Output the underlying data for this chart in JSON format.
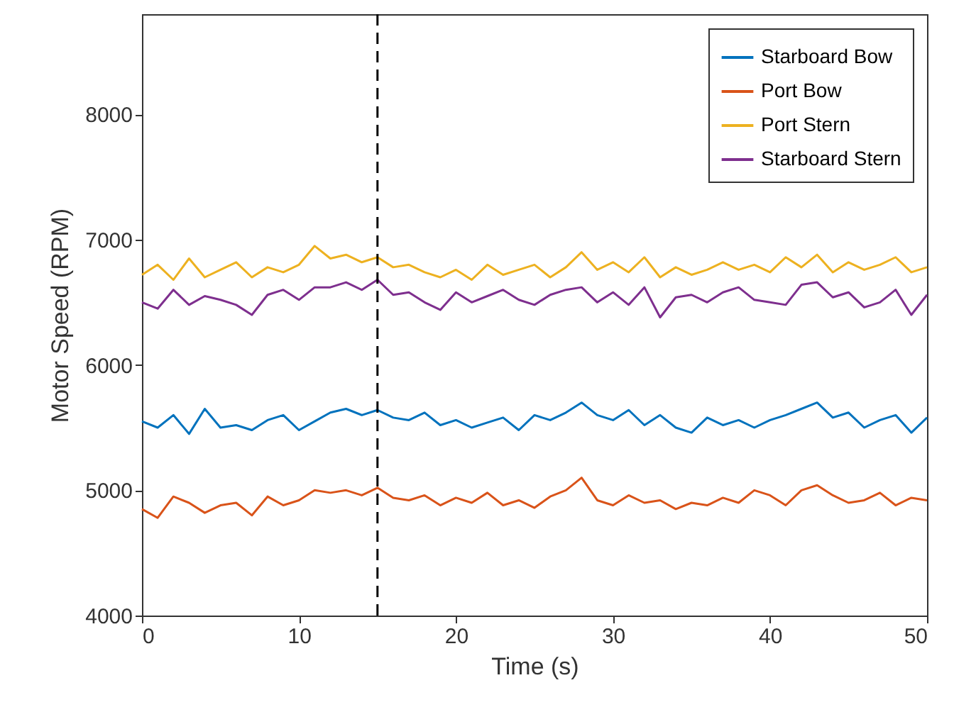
{
  "chart_data": {
    "type": "line",
    "xlabel": "Time (s)",
    "ylabel": "Motor Speed (RPM)",
    "x": [
      0,
      1,
      2,
      3,
      4,
      5,
      6,
      7,
      8,
      9,
      10,
      11,
      12,
      13,
      14,
      15,
      16,
      17,
      18,
      19,
      20,
      21,
      22,
      23,
      24,
      25,
      26,
      27,
      28,
      29,
      30,
      31,
      32,
      33,
      34,
      35,
      36,
      37,
      38,
      39,
      40,
      41,
      42,
      43,
      44,
      45,
      46,
      47,
      48,
      49,
      50
    ],
    "series": [
      {
        "name": "Starboard Bow",
        "color": "#0072bd",
        "values": [
          5550,
          5500,
          5600,
          5450,
          5650,
          5500,
          5520,
          5480,
          5560,
          5600,
          5480,
          5550,
          5620,
          5650,
          5600,
          5640,
          5580,
          5560,
          5620,
          5520,
          5560,
          5500,
          5540,
          5580,
          5480,
          5600,
          5560,
          5620,
          5700,
          5600,
          5560,
          5640,
          5520,
          5600,
          5500,
          5460,
          5580,
          5520,
          5560,
          5500,
          5560,
          5600,
          5650,
          5700,
          5580,
          5620,
          5500,
          5560,
          5600,
          5460,
          5580
        ]
      },
      {
        "name": "Port Bow",
        "color": "#d95319",
        "values": [
          4850,
          4780,
          4950,
          4900,
          4820,
          4880,
          4900,
          4800,
          4950,
          4880,
          4920,
          5000,
          4980,
          5000,
          4960,
          5020,
          4940,
          4920,
          4960,
          4880,
          4940,
          4900,
          4980,
          4880,
          4920,
          4860,
          4950,
          5000,
          5100,
          4920,
          4880,
          4960,
          4900,
          4920,
          4850,
          4900,
          4880,
          4940,
          4900,
          5000,
          4960,
          4880,
          5000,
          5040,
          4960,
          4900,
          4920,
          4980,
          4880,
          4940,
          4920
        ]
      },
      {
        "name": "Port Stern",
        "color": "#edb120",
        "values": [
          6720,
          6800,
          6680,
          6850,
          6700,
          6760,
          6820,
          6700,
          6780,
          6740,
          6800,
          6950,
          6850,
          6880,
          6820,
          6860,
          6780,
          6800,
          6740,
          6700,
          6760,
          6680,
          6800,
          6720,
          6760,
          6800,
          6700,
          6780,
          6900,
          6760,
          6820,
          6740,
          6860,
          6700,
          6780,
          6720,
          6760,
          6820,
          6760,
          6800,
          6740,
          6860,
          6780,
          6880,
          6740,
          6820,
          6760,
          6800,
          6860,
          6740,
          6780
        ]
      },
      {
        "name": "Starboard Stern",
        "color": "#7e2f8e",
        "values": [
          6500,
          6450,
          6600,
          6480,
          6550,
          6520,
          6480,
          6400,
          6560,
          6600,
          6520,
          6620,
          6620,
          6660,
          6600,
          6680,
          6560,
          6580,
          6500,
          6440,
          6580,
          6500,
          6550,
          6600,
          6520,
          6480,
          6560,
          6600,
          6620,
          6500,
          6580,
          6480,
          6620,
          6380,
          6540,
          6560,
          6500,
          6580,
          6620,
          6520,
          6500,
          6480,
          6640,
          6660,
          6540,
          6580,
          6460,
          6500,
          6600,
          6400,
          6560
        ]
      }
    ],
    "xlim": [
      0,
      50
    ],
    "xticks": [
      0,
      10,
      20,
      30,
      40,
      50
    ],
    "ylim": [
      4000,
      8800
    ],
    "yticks": [
      4000,
      5000,
      6000,
      7000,
      8000
    ],
    "ref_lines": [
      {
        "axis": "x",
        "value": 15,
        "color": "#000000",
        "line_style": "dashed"
      }
    ],
    "legend": "top right",
    "line_style": "solid"
  }
}
